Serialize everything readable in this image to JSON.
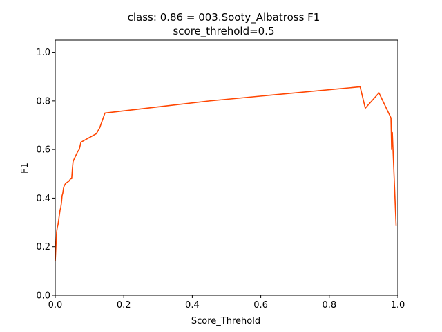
{
  "chart_data": {
    "type": "line",
    "title": "class: 0.86 = 003.Sooty_Albatross F1",
    "subtitle": "score_threhold=0.5",
    "xlabel": "Score_Threhold",
    "ylabel": "F1",
    "xlim": [
      0.0,
      1.0
    ],
    "ylim": [
      0.0,
      1.05
    ],
    "x_ticks": [
      "0.0",
      "0.2",
      "0.4",
      "0.6",
      "0.8",
      "1.0"
    ],
    "y_ticks": [
      "0.0",
      "0.2",
      "0.4",
      "0.6",
      "0.8",
      "1.0"
    ],
    "grid": false,
    "line_color": "#ff4500",
    "series": [
      {
        "x": [
          0.0,
          0.002,
          0.004,
          0.006,
          0.008,
          0.01,
          0.012,
          0.014,
          0.016,
          0.018,
          0.02,
          0.022,
          0.024,
          0.026,
          0.028,
          0.03,
          0.035,
          0.04,
          0.045,
          0.048,
          0.05,
          0.052,
          0.055,
          0.06,
          0.065,
          0.07,
          0.075,
          0.12,
          0.13,
          0.145,
          0.45,
          0.89,
          0.905,
          0.945,
          0.98,
          0.982,
          0.984,
          0.986,
          0.995
        ],
        "y": [
          0.14,
          0.2,
          0.26,
          0.28,
          0.29,
          0.31,
          0.33,
          0.35,
          0.36,
          0.38,
          0.41,
          0.42,
          0.44,
          0.45,
          0.455,
          0.46,
          0.465,
          0.47,
          0.48,
          0.48,
          0.52,
          0.55,
          0.56,
          0.575,
          0.59,
          0.6,
          0.63,
          0.665,
          0.69,
          0.75,
          0.8,
          0.858,
          0.77,
          0.833,
          0.73,
          0.6,
          0.67,
          0.6,
          0.285
        ]
      }
    ]
  }
}
